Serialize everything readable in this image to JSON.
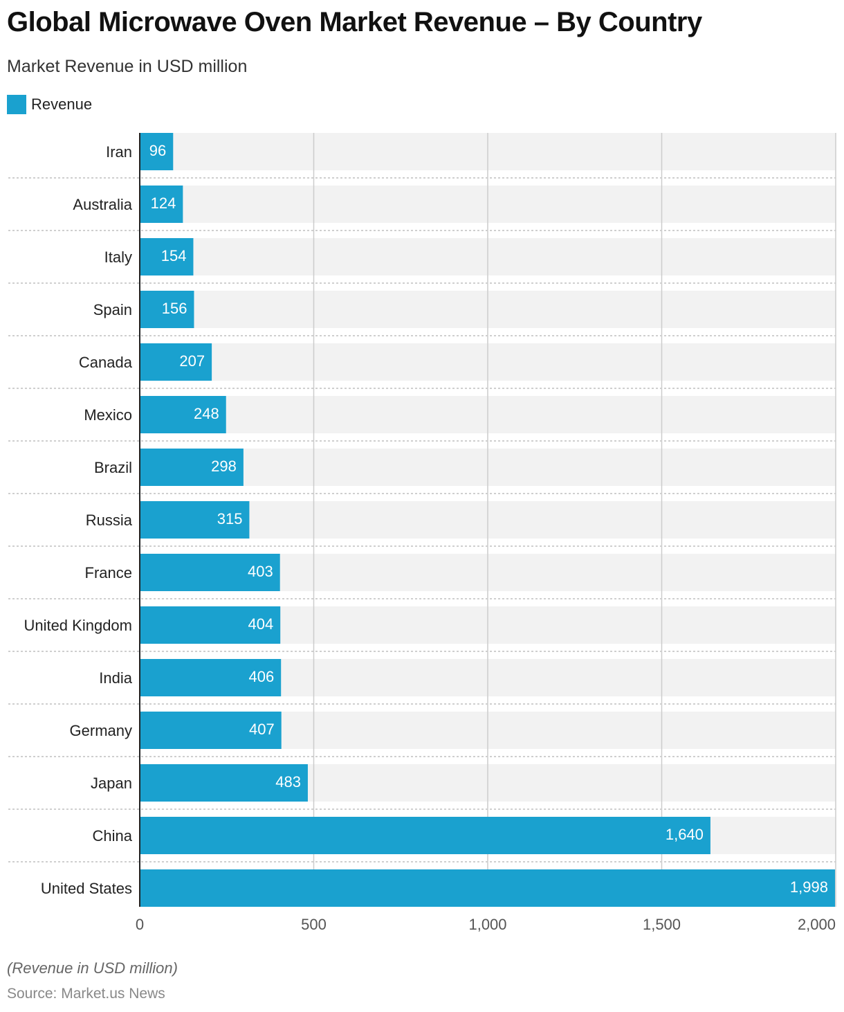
{
  "chart_data": {
    "type": "bar",
    "orientation": "horizontal",
    "title": "Global Microwave Oven Market Revenue – By Country",
    "subtitle": "Market Revenue in USD million",
    "legend": [
      "Revenue"
    ],
    "legend_position": "top-left",
    "categories": [
      "Iran",
      "Australia",
      "Italy",
      "Spain",
      "Canada",
      "Mexico",
      "Brazil",
      "Russia",
      "France",
      "United Kingdom",
      "India",
      "Germany",
      "Japan",
      "China",
      "United States"
    ],
    "values": [
      96,
      124,
      154,
      156,
      207,
      248,
      298,
      315,
      403,
      404,
      406,
      407,
      483,
      1640,
      1998
    ],
    "value_labels": [
      "96",
      "124",
      "154",
      "156",
      "207",
      "248",
      "298",
      "315",
      "403",
      "404",
      "406",
      "407",
      "483",
      "1,640",
      "1,998"
    ],
    "xlim": [
      0,
      2000
    ],
    "xticks": [
      0,
      500,
      1000,
      1500,
      2000
    ],
    "xtick_labels": [
      "0",
      "500",
      "1,000",
      "1,500",
      "2,000"
    ],
    "grid": true,
    "color": "#1aa1cf",
    "note": "(Revenue in USD million)",
    "source": "Source: Market.us News"
  }
}
